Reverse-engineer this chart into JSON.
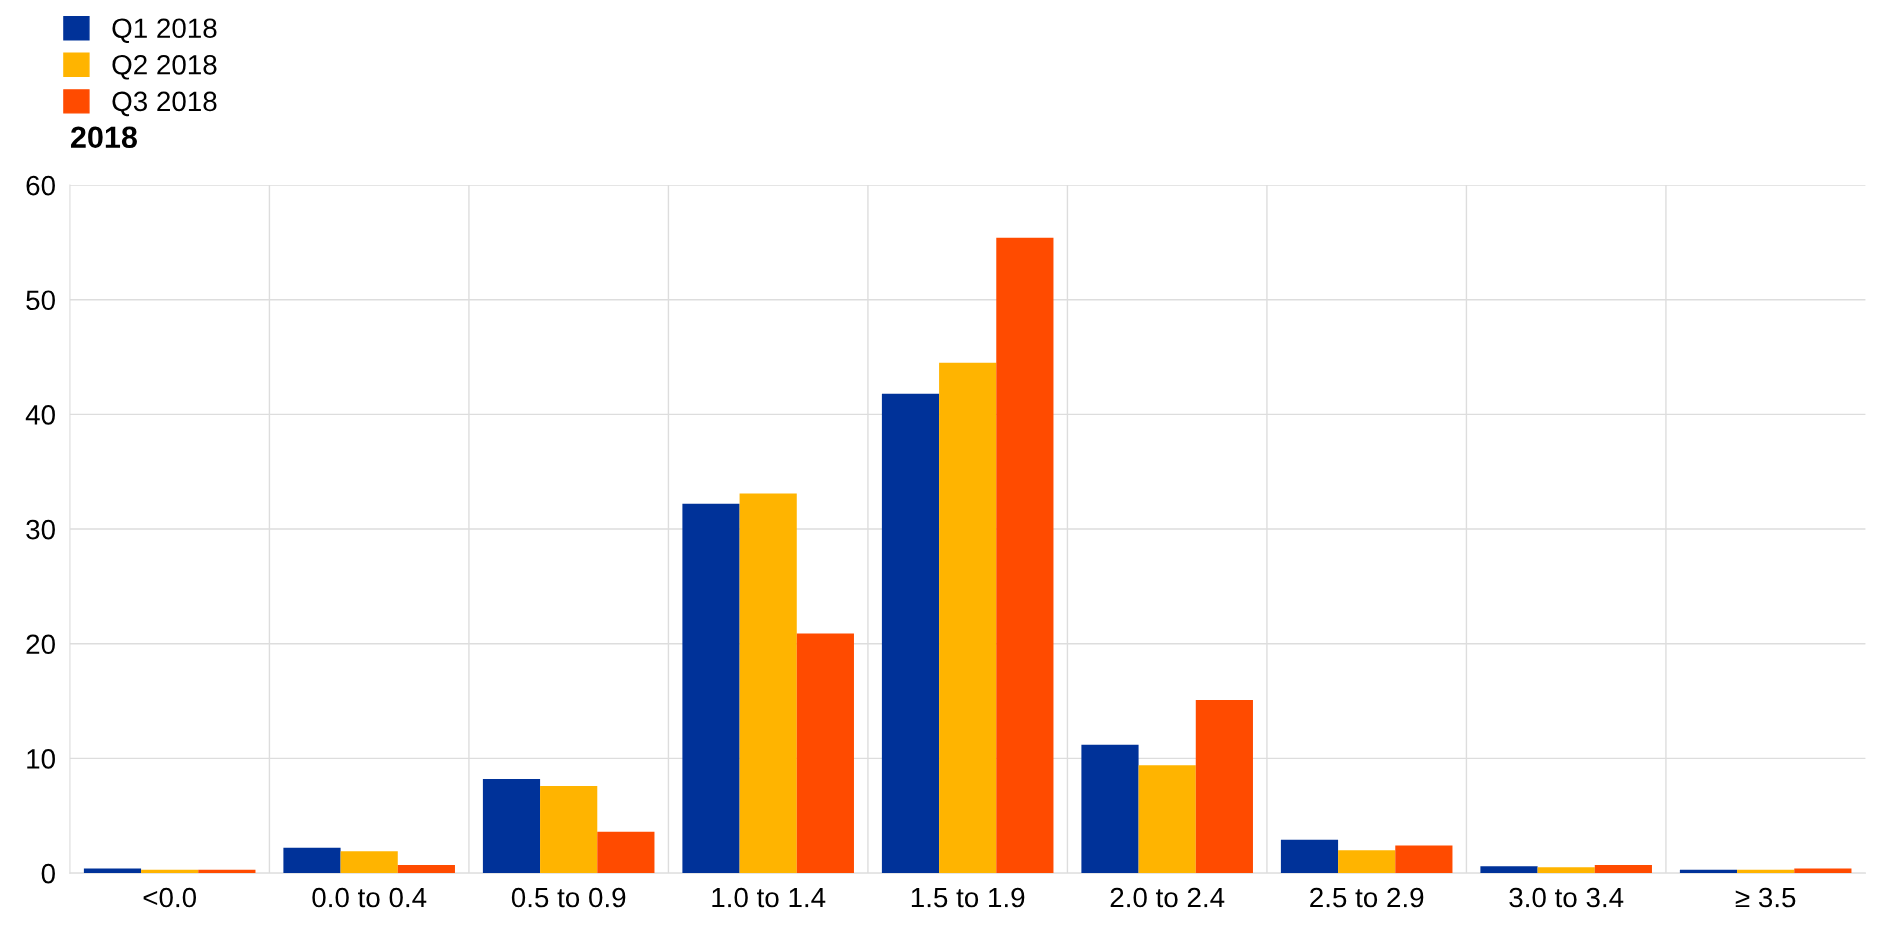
{
  "chart_data": {
    "type": "bar",
    "title": "2018",
    "categories": [
      "<0.0",
      "0.0 to 0.4",
      "0.5 to 0.9",
      "1.0 to 1.4",
      "1.5 to 1.9",
      "2.0 to 2.4",
      "2.5 to 2.9",
      "3.0 to 3.4",
      "≥ 3.5"
    ],
    "series": [
      {
        "name": "Q1 2018",
        "color": "#003299",
        "values": [
          0.4,
          2.2,
          8.2,
          32.2,
          41.8,
          11.2,
          2.9,
          0.6,
          0.3
        ]
      },
      {
        "name": "Q2 2018",
        "color": "#ffb400",
        "values": [
          0.3,
          1.9,
          7.6,
          33.1,
          44.5,
          9.4,
          2.0,
          0.5,
          0.3
        ]
      },
      {
        "name": "Q3 2018",
        "color": "#ff4b00",
        "values": [
          0.3,
          0.7,
          3.6,
          20.9,
          55.4,
          15.1,
          2.4,
          0.7,
          0.4
        ]
      }
    ],
    "ylim": [
      0,
      60
    ],
    "yticks": [
      0,
      10,
      20,
      30,
      40,
      50,
      60
    ],
    "grid": true,
    "legend": "top left"
  }
}
